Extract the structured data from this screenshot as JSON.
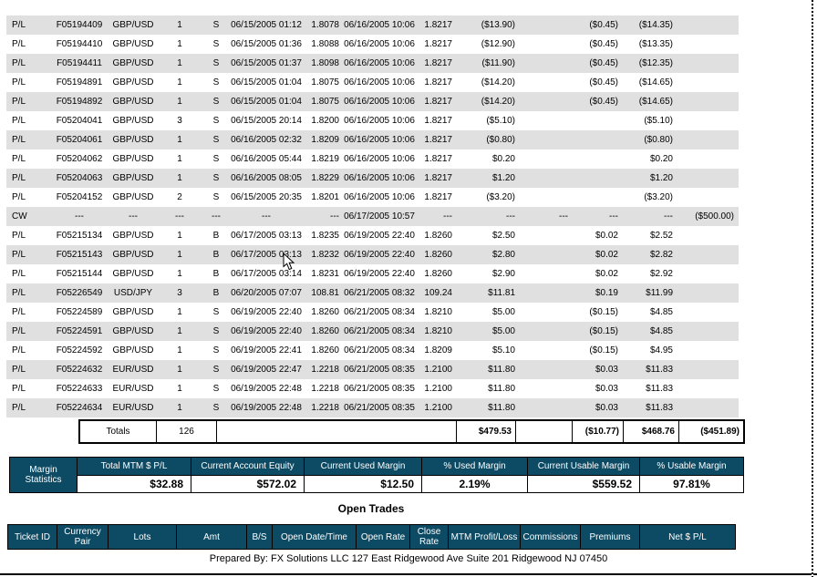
{
  "colors": {
    "header_blue": "#0d4a63",
    "row_gray": "#e0e0e0",
    "border_black": "#000000"
  },
  "closed_trades": {
    "columns": [
      "type",
      "ticket",
      "pair",
      "lots",
      "bs",
      "open_datetime",
      "open_rate",
      "close_datetime",
      "close_rate",
      "mtm",
      "commissions",
      "premiums",
      "net",
      "amount"
    ],
    "rows": [
      {
        "type": "P/L",
        "ticket": "F05194409",
        "pair": "GBP/USD",
        "lots": "1",
        "bs": "S",
        "open_datetime": "06/15/2005 01:12",
        "open_rate": "1.8078",
        "close_datetime": "06/16/2005 10:06",
        "close_rate": "1.8217",
        "mtm": "($13.90)",
        "commissions": "",
        "premiums": "($0.45)",
        "net": "($14.35)",
        "amount": ""
      },
      {
        "type": "P/L",
        "ticket": "F05194410",
        "pair": "GBP/USD",
        "lots": "1",
        "bs": "S",
        "open_datetime": "06/15/2005 01:36",
        "open_rate": "1.8088",
        "close_datetime": "06/16/2005 10:06",
        "close_rate": "1.8217",
        "mtm": "($12.90)",
        "commissions": "",
        "premiums": "($0.45)",
        "net": "($13.35)",
        "amount": ""
      },
      {
        "type": "P/L",
        "ticket": "F05194411",
        "pair": "GBP/USD",
        "lots": "1",
        "bs": "S",
        "open_datetime": "06/15/2005 01:37",
        "open_rate": "1.8098",
        "close_datetime": "06/16/2005 10:06",
        "close_rate": "1.8217",
        "mtm": "($11.90)",
        "commissions": "",
        "premiums": "($0.45)",
        "net": "($12.35)",
        "amount": ""
      },
      {
        "type": "P/L",
        "ticket": "F05194891",
        "pair": "GBP/USD",
        "lots": "1",
        "bs": "S",
        "open_datetime": "06/15/2005 01:04",
        "open_rate": "1.8075",
        "close_datetime": "06/16/2005 10:06",
        "close_rate": "1.8217",
        "mtm": "($14.20)",
        "commissions": "",
        "premiums": "($0.45)",
        "net": "($14.65)",
        "amount": ""
      },
      {
        "type": "P/L",
        "ticket": "F05194892",
        "pair": "GBP/USD",
        "lots": "1",
        "bs": "S",
        "open_datetime": "06/15/2005 01:04",
        "open_rate": "1.8075",
        "close_datetime": "06/16/2005 10:06",
        "close_rate": "1.8217",
        "mtm": "($14.20)",
        "commissions": "",
        "premiums": "($0.45)",
        "net": "($14.65)",
        "amount": ""
      },
      {
        "type": "P/L",
        "ticket": "F05204041",
        "pair": "GBP/USD",
        "lots": "3",
        "bs": "S",
        "open_datetime": "06/15/2005 20:14",
        "open_rate": "1.8200",
        "close_datetime": "06/16/2005 10:06",
        "close_rate": "1.8217",
        "mtm": "($5.10)",
        "commissions": "",
        "premiums": "",
        "net": "($5.10)",
        "amount": ""
      },
      {
        "type": "P/L",
        "ticket": "F05204061",
        "pair": "GBP/USD",
        "lots": "1",
        "bs": "S",
        "open_datetime": "06/16/2005 02:32",
        "open_rate": "1.8209",
        "close_datetime": "06/16/2005 10:06",
        "close_rate": "1.8217",
        "mtm": "($0.80)",
        "commissions": "",
        "premiums": "",
        "net": "($0.80)",
        "amount": ""
      },
      {
        "type": "P/L",
        "ticket": "F05204062",
        "pair": "GBP/USD",
        "lots": "1",
        "bs": "S",
        "open_datetime": "06/16/2005 05:44",
        "open_rate": "1.8219",
        "close_datetime": "06/16/2005 10:06",
        "close_rate": "1.8217",
        "mtm": "$0.20",
        "commissions": "",
        "premiums": "",
        "net": "$0.20",
        "amount": ""
      },
      {
        "type": "P/L",
        "ticket": "F05204063",
        "pair": "GBP/USD",
        "lots": "1",
        "bs": "S",
        "open_datetime": "06/16/2005 08:05",
        "open_rate": "1.8229",
        "close_datetime": "06/16/2005 10:06",
        "close_rate": "1.8217",
        "mtm": "$1.20",
        "commissions": "",
        "premiums": "",
        "net": "$1.20",
        "amount": ""
      },
      {
        "type": "P/L",
        "ticket": "F05204152",
        "pair": "GBP/USD",
        "lots": "2",
        "bs": "S",
        "open_datetime": "06/15/2005 20:35",
        "open_rate": "1.8201",
        "close_datetime": "06/16/2005 10:06",
        "close_rate": "1.8217",
        "mtm": "($3.20)",
        "commissions": "",
        "premiums": "",
        "net": "($3.20)",
        "amount": ""
      },
      {
        "type": "CW",
        "ticket": "---",
        "pair": "---",
        "lots": "---",
        "bs": "---",
        "open_datetime": "---",
        "open_rate": "---",
        "close_datetime": "06/17/2005 10:57",
        "close_rate": "---",
        "mtm": "---",
        "commissions": "---",
        "premiums": "---",
        "net": "---",
        "amount": "($500.00)"
      },
      {
        "type": "P/L",
        "ticket": "F05215134",
        "pair": "GBP/USD",
        "lots": "1",
        "bs": "B",
        "open_datetime": "06/17/2005 03:13",
        "open_rate": "1.8235",
        "close_datetime": "06/19/2005 22:40",
        "close_rate": "1.8260",
        "mtm": "$2.50",
        "commissions": "",
        "premiums": "$0.02",
        "net": "$2.52",
        "amount": ""
      },
      {
        "type": "P/L",
        "ticket": "F05215143",
        "pair": "GBP/USD",
        "lots": "1",
        "bs": "B",
        "open_datetime": "06/17/2005 03:13",
        "open_rate": "1.8232",
        "close_datetime": "06/19/2005 22:40",
        "close_rate": "1.8260",
        "mtm": "$2.80",
        "commissions": "",
        "premiums": "$0.02",
        "net": "$2.82",
        "amount": ""
      },
      {
        "type": "P/L",
        "ticket": "F05215144",
        "pair": "GBP/USD",
        "lots": "1",
        "bs": "B",
        "open_datetime": "06/17/2005 03:14",
        "open_rate": "1.8231",
        "close_datetime": "06/19/2005 22:40",
        "close_rate": "1.8260",
        "mtm": "$2.90",
        "commissions": "",
        "premiums": "$0.02",
        "net": "$2.92",
        "amount": ""
      },
      {
        "type": "P/L",
        "ticket": "F05226549",
        "pair": "USD/JPY",
        "lots": "3",
        "bs": "B",
        "open_datetime": "06/20/2005 07:07",
        "open_rate": "108.81",
        "close_datetime": "06/21/2005 08:32",
        "close_rate": "109.24",
        "mtm": "$11.81",
        "commissions": "",
        "premiums": "$0.19",
        "net": "$11.99",
        "amount": ""
      },
      {
        "type": "P/L",
        "ticket": "F05224589",
        "pair": "GBP/USD",
        "lots": "1",
        "bs": "S",
        "open_datetime": "06/19/2005 22:40",
        "open_rate": "1.8260",
        "close_datetime": "06/21/2005 08:34",
        "close_rate": "1.8210",
        "mtm": "$5.00",
        "commissions": "",
        "premiums": "($0.15)",
        "net": "$4.85",
        "amount": ""
      },
      {
        "type": "P/L",
        "ticket": "F05224591",
        "pair": "GBP/USD",
        "lots": "1",
        "bs": "S",
        "open_datetime": "06/19/2005 22:40",
        "open_rate": "1.8260",
        "close_datetime": "06/21/2005 08:34",
        "close_rate": "1.8210",
        "mtm": "$5.00",
        "commissions": "",
        "premiums": "($0.15)",
        "net": "$4.85",
        "amount": ""
      },
      {
        "type": "P/L",
        "ticket": "F05224592",
        "pair": "GBP/USD",
        "lots": "1",
        "bs": "S",
        "open_datetime": "06/19/2005 22:41",
        "open_rate": "1.8260",
        "close_datetime": "06/21/2005 08:34",
        "close_rate": "1.8209",
        "mtm": "$5.10",
        "commissions": "",
        "premiums": "($0.15)",
        "net": "$4.95",
        "amount": ""
      },
      {
        "type": "P/L",
        "ticket": "F05224632",
        "pair": "EUR/USD",
        "lots": "1",
        "bs": "S",
        "open_datetime": "06/19/2005 22:47",
        "open_rate": "1.2218",
        "close_datetime": "06/21/2005 08:35",
        "close_rate": "1.2100",
        "mtm": "$11.80",
        "commissions": "",
        "premiums": "$0.03",
        "net": "$11.83",
        "amount": ""
      },
      {
        "type": "P/L",
        "ticket": "F05224633",
        "pair": "EUR/USD",
        "lots": "1",
        "bs": "S",
        "open_datetime": "06/19/2005 22:48",
        "open_rate": "1.2218",
        "close_datetime": "06/21/2005 08:35",
        "close_rate": "1.2100",
        "mtm": "$11.80",
        "commissions": "",
        "premiums": "$0.03",
        "net": "$11.83",
        "amount": ""
      },
      {
        "type": "P/L",
        "ticket": "F05224634",
        "pair": "EUR/USD",
        "lots": "1",
        "bs": "S",
        "open_datetime": "06/19/2005 22:48",
        "open_rate": "1.2218",
        "close_datetime": "06/21/2005 08:35",
        "close_rate": "1.2100",
        "mtm": "$11.80",
        "commissions": "",
        "premiums": "$0.03",
        "net": "$11.83",
        "amount": ""
      }
    ],
    "totals": {
      "label": "Totals",
      "lots": "126",
      "mtm": "$479.53",
      "commissions": "",
      "premiums": "($10.77)",
      "net": "$468.76",
      "amount": "($451.89)"
    }
  },
  "margin_statistics": {
    "label": "Margin Statistics",
    "columns": [
      {
        "header": "Total MTM $ P/L",
        "value": "$32.88"
      },
      {
        "header": "Current Account Equity",
        "value": "$572.02"
      },
      {
        "header": "Current Used Margin",
        "value": "$12.50"
      },
      {
        "header": "% Used Margin",
        "value": "2.19%"
      },
      {
        "header": "Current Usable Margin",
        "value": "$559.52"
      },
      {
        "header": "% Usable Margin",
        "value": "97.81%"
      }
    ]
  },
  "open_trades": {
    "title": "Open Trades",
    "headers": [
      "Ticket ID",
      "Currency Pair",
      "Lots",
      "Amt",
      "B/S",
      "Open Date/Time",
      "Open Rate",
      "Close Rate",
      "MTM Profit/Loss",
      "Commissions",
      "Premiums",
      "Net $ P/L"
    ]
  },
  "footer": {
    "prepared_by": "Prepared By: FX Solutions LLC  127 East Ridgewood Ave  Suite 201  Ridgewood  NJ  07450"
  }
}
